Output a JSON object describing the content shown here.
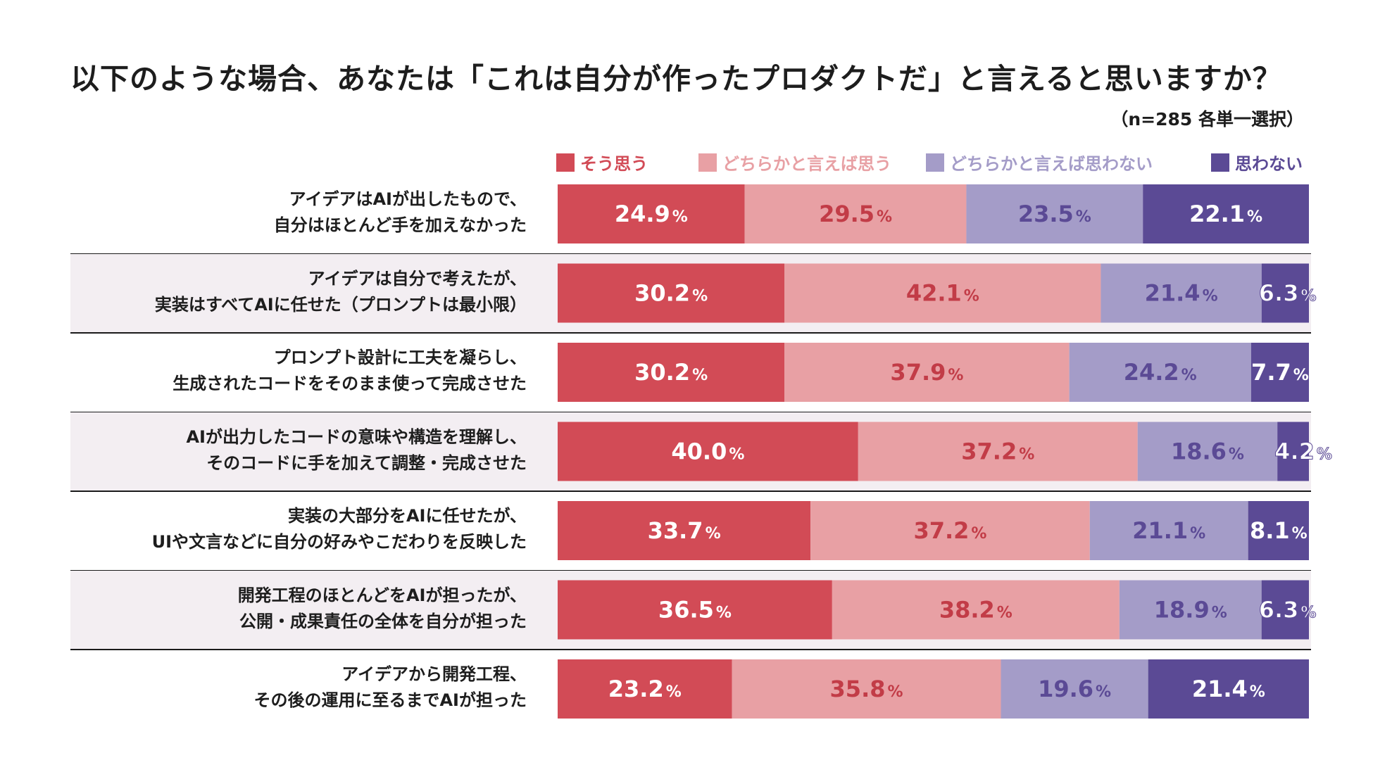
{
  "chart_data": {
    "type": "bar",
    "orientation": "horizontal-stacked-100",
    "title": "以下のような場合、あなたは「これは自分が作ったプロダクトだ」と言えると思いますか？",
    "note": "（n=285 各単一選択）",
    "unit": "%",
    "colors": {
      "series": [
        "#d24b56",
        "#e8a0a4",
        "#a49cc8",
        "#5b4a95"
      ],
      "label": [
        "#ffffff",
        "#c23c47",
        "#5b4a95",
        "#ffffff"
      ],
      "legend_text": [
        "#d24b56",
        "#e8a0a4",
        "#a49cc8",
        "#5b4a95"
      ],
      "row_band": "#f3eef2"
    },
    "series_names": [
      "そう思う",
      "どちらかと言えば思う",
      "どちらかと言えば思わない",
      "思わない"
    ],
    "categories": [
      [
        "アイデアはAIが出したもので、",
        "自分はほとんど手を加えなかった"
      ],
      [
        "アイデアは自分で考えたが、",
        "実装はすべてAIに任せた（プロンプトは最小限）"
      ],
      [
        "プロンプト設計に工夫を凝らし、",
        "生成されたコードをそのまま使って完成させた"
      ],
      [
        "AIが出力したコードの意味や構造を理解し、",
        "そのコードに手を加えて調整・完成させた"
      ],
      [
        "実装の大部分をAIに任せたが、",
        "UIや文言などに自分の好みやこだわりを反映した"
      ],
      [
        "開発工程のほとんどをAIが担ったが、",
        "公開・成果責任の全体を自分が担った"
      ],
      [
        "アイデアから開発工程、",
        "その後の運用に至るまでAIが担った"
      ]
    ],
    "values": [
      [
        24.9,
        29.5,
        23.5,
        22.1
      ],
      [
        30.2,
        42.1,
        21.4,
        6.3
      ],
      [
        30.2,
        37.9,
        24.2,
        7.7
      ],
      [
        40.0,
        37.2,
        18.6,
        4.2
      ],
      [
        33.7,
        37.2,
        21.1,
        8.1
      ],
      [
        36.5,
        38.2,
        18.9,
        6.3
      ],
      [
        23.2,
        35.8,
        19.6,
        21.4
      ]
    ],
    "xlim": [
      0,
      100
    ]
  }
}
